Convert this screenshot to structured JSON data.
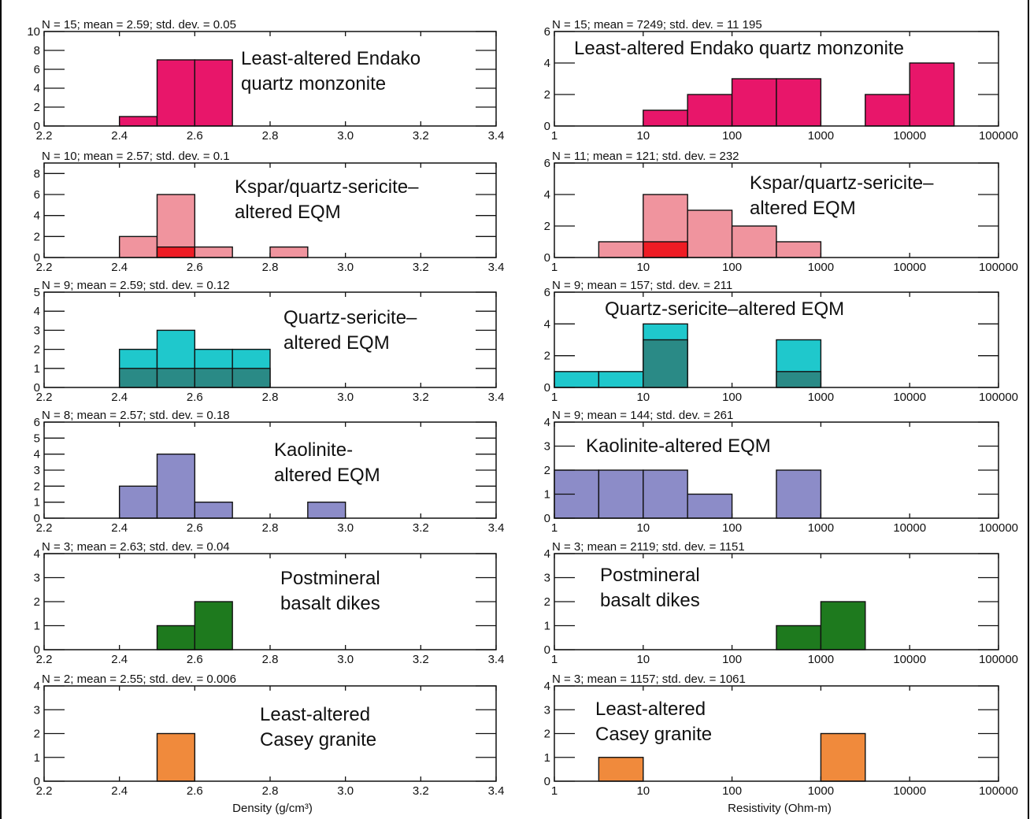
{
  "figure": {
    "density_xlabel": "Density (g/cm³)",
    "resistivity_xlabel": "Resistivity (Ohm-m)"
  },
  "chart_data": [
    {
      "type": "bar",
      "column": "density",
      "stats": "N = 15; mean = 2.59; std. dev. = 0.05",
      "title_lines": [
        "Least-altered Endako",
        "quartz monzonite"
      ],
      "xlim": [
        2.2,
        3.4
      ],
      "ylim": [
        0,
        10
      ],
      "xticks": [
        "2.2",
        "2.4",
        "2.6",
        "2.8",
        "3.0",
        "3.2",
        "3.4"
      ],
      "yticks": [
        0,
        2,
        4,
        6,
        8,
        10
      ],
      "bins": [
        [
          2.4,
          2.5
        ],
        [
          2.5,
          2.6
        ],
        [
          2.6,
          2.7
        ]
      ],
      "series": [
        {
          "values": [
            1,
            7,
            7
          ],
          "color": "#e8166a"
        }
      ]
    },
    {
      "type": "bar",
      "column": "resistivity",
      "log": true,
      "stats": "N = 15; mean = 7249; std. dev. = 11 195",
      "title_lines": [
        "Least-altered Endako quartz monzonite"
      ],
      "xlim": [
        1,
        100000
      ],
      "ylim": [
        0,
        6
      ],
      "xticks": [
        "1",
        "10",
        "100",
        "1000",
        "10000",
        "100000"
      ],
      "yticks": [
        0,
        2,
        4,
        6
      ],
      "bins": [
        [
          10,
          31.6
        ],
        [
          31.6,
          100
        ],
        [
          100,
          316
        ],
        [
          316,
          1000
        ],
        [
          3162,
          10000
        ],
        [
          10000,
          31623
        ]
      ],
      "series": [
        {
          "values": [
            1,
            2,
            3,
            3,
            2,
            4
          ],
          "color": "#e8166a"
        }
      ]
    },
    {
      "type": "bar",
      "column": "density",
      "stats": "N = 10; mean = 2.57; std. dev. = 0.1",
      "title_lines": [
        "Kspar/quartz-sericite–",
        "altered EQM"
      ],
      "xlim": [
        2.2,
        3.4
      ],
      "ylim": [
        0,
        9
      ],
      "xticks": [
        "2.2",
        "2.4",
        "2.6",
        "2.8",
        "3.0",
        "3.2",
        "3.4"
      ],
      "yticks": [
        0,
        2,
        4,
        6,
        8
      ],
      "bins": [
        [
          2.4,
          2.5
        ],
        [
          2.5,
          2.6
        ],
        [
          2.6,
          2.7
        ],
        [
          2.8,
          2.9
        ]
      ],
      "series": [
        {
          "values": [
            2,
            6,
            1,
            1
          ],
          "color": "#f0949e"
        },
        {
          "values": [
            0,
            1,
            0,
            0
          ],
          "color": "#ee1c24"
        }
      ]
    },
    {
      "type": "bar",
      "column": "resistivity",
      "log": true,
      "stats": "N = 11; mean = 121; std. dev. = 232",
      "title_lines": [
        "Kspar/quartz-sericite–",
        "altered EQM"
      ],
      "xlim": [
        1,
        100000
      ],
      "ylim": [
        0,
        6
      ],
      "xticks": [
        "1",
        "10",
        "100",
        "1000",
        "10000",
        "100000"
      ],
      "yticks": [
        0,
        2,
        4,
        6
      ],
      "bins": [
        [
          3.16,
          10
        ],
        [
          10,
          31.6
        ],
        [
          31.6,
          100
        ],
        [
          100,
          316
        ],
        [
          316,
          1000
        ]
      ],
      "series": [
        {
          "values": [
            1,
            4,
            3,
            2,
            1
          ],
          "color": "#f0949e"
        },
        {
          "values": [
            0,
            1,
            0,
            0,
            0
          ],
          "color": "#ee1c24"
        }
      ]
    },
    {
      "type": "bar",
      "column": "density",
      "stats": "N = 9; mean = 2.59; std. dev. = 0.12",
      "title_lines": [
        "Quartz-sericite–",
        "altered EQM"
      ],
      "xlim": [
        2.2,
        3.4
      ],
      "ylim": [
        0,
        5
      ],
      "xticks": [
        "2.2",
        "2.4",
        "2.6",
        "2.8",
        "3.0",
        "3.2",
        "3.4"
      ],
      "yticks": [
        0,
        1,
        2,
        3,
        4,
        5
      ],
      "bins": [
        [
          2.4,
          2.5
        ],
        [
          2.5,
          2.6
        ],
        [
          2.6,
          2.7
        ],
        [
          2.7,
          2.8
        ]
      ],
      "series": [
        {
          "values": [
            2,
            3,
            2,
            2
          ],
          "color": "#1fc8cc"
        },
        {
          "values": [
            1,
            1,
            1,
            1
          ],
          "color": "#2a8a86"
        }
      ]
    },
    {
      "type": "bar",
      "column": "resistivity",
      "log": true,
      "stats": "N = 9; mean = 157; std. dev. = 211",
      "title_lines": [
        "Quartz-sericite–altered EQM"
      ],
      "xlim": [
        1,
        100000
      ],
      "ylim": [
        0,
        6
      ],
      "xticks": [
        "1",
        "10",
        "100",
        "1000",
        "10000",
        "100000"
      ],
      "yticks": [
        0,
        2,
        4,
        6
      ],
      "bins": [
        [
          1,
          3.16
        ],
        [
          3.16,
          10
        ],
        [
          10,
          31.6
        ],
        [
          316,
          1000
        ]
      ],
      "series": [
        {
          "values": [
            1,
            1,
            4,
            3
          ],
          "color": "#1fc8cc"
        },
        {
          "values": [
            0,
            0,
            3,
            1
          ],
          "color": "#2a8a86"
        }
      ]
    },
    {
      "type": "bar",
      "column": "density",
      "stats": "N = 8; mean = 2.57; std. dev. = 0.18",
      "title_lines": [
        "Kaolinite-",
        "altered EQM"
      ],
      "xlim": [
        2.2,
        3.4
      ],
      "ylim": [
        0,
        6
      ],
      "xticks": [
        "2.2",
        "2.4",
        "2.6",
        "2.8",
        "3.0",
        "3.2",
        "3.4"
      ],
      "yticks": [
        0,
        1,
        2,
        3,
        4,
        5,
        6
      ],
      "bins": [
        [
          2.4,
          2.5
        ],
        [
          2.5,
          2.6
        ],
        [
          2.6,
          2.7
        ],
        [
          2.9,
          3.0
        ]
      ],
      "series": [
        {
          "values": [
            2,
            4,
            1,
            1
          ],
          "color": "#8c8cc8"
        }
      ]
    },
    {
      "type": "bar",
      "column": "resistivity",
      "log": true,
      "stats": "N = 9; mean = 144; std. dev. = 261",
      "title_lines": [
        "Kaolinite-altered EQM"
      ],
      "xlim": [
        1,
        100000
      ],
      "ylim": [
        0,
        4
      ],
      "xticks": [
        "1",
        "10",
        "100",
        "1000",
        "10000",
        "100000"
      ],
      "yticks": [
        0,
        1,
        2,
        3,
        4
      ],
      "bins": [
        [
          1,
          3.16
        ],
        [
          3.16,
          10
        ],
        [
          10,
          31.6
        ],
        [
          31.6,
          100
        ],
        [
          316,
          1000
        ]
      ],
      "series": [
        {
          "values": [
            2,
            2,
            2,
            1,
            2
          ],
          "color": "#8c8cc8"
        }
      ]
    },
    {
      "type": "bar",
      "column": "density",
      "stats": "N = 3; mean = 2.63; std. dev. = 0.04",
      "title_lines": [
        "Postmineral",
        "basalt dikes"
      ],
      "xlim": [
        2.2,
        3.4
      ],
      "ylim": [
        0,
        4
      ],
      "xticks": [
        "2.2",
        "2.4",
        "2.6",
        "2.8",
        "3.0",
        "3.2",
        "3.4"
      ],
      "yticks": [
        0,
        1,
        2,
        3,
        4
      ],
      "bins": [
        [
          2.5,
          2.6
        ],
        [
          2.6,
          2.7
        ]
      ],
      "series": [
        {
          "values": [
            1,
            2
          ],
          "color": "#1e7a1e"
        }
      ]
    },
    {
      "type": "bar",
      "column": "resistivity",
      "log": true,
      "stats": "N = 3; mean = 2119; std. dev. = 1151",
      "title_lines": [
        "Postmineral",
        "basalt dikes"
      ],
      "xlim": [
        1,
        100000
      ],
      "ylim": [
        0,
        4
      ],
      "xticks": [
        "1",
        "10",
        "100",
        "1000",
        "10000",
        "100000"
      ],
      "yticks": [
        0,
        1,
        2,
        3,
        4
      ],
      "bins": [
        [
          316,
          1000
        ],
        [
          1000,
          3162
        ]
      ],
      "series": [
        {
          "values": [
            1,
            2
          ],
          "color": "#1e7a1e"
        }
      ]
    },
    {
      "type": "bar",
      "column": "density",
      "stats": "N = 2; mean = 2.55; std. dev. = 0.006",
      "title_lines": [
        "Least-altered",
        "Casey granite"
      ],
      "xlim": [
        2.2,
        3.4
      ],
      "ylim": [
        0,
        4
      ],
      "xticks": [
        "2.2",
        "2.4",
        "2.6",
        "2.8",
        "3.0",
        "3.2",
        "3.4"
      ],
      "yticks": [
        0,
        1,
        2,
        3,
        4
      ],
      "bins": [
        [
          2.5,
          2.6
        ]
      ],
      "series": [
        {
          "values": [
            2
          ],
          "color": "#f08a3c"
        }
      ]
    },
    {
      "type": "bar",
      "column": "resistivity",
      "log": true,
      "stats": "N = 3; mean = 1157; std. dev. = 1061",
      "title_lines": [
        "Least-altered",
        "Casey granite"
      ],
      "xlim": [
        1,
        100000
      ],
      "ylim": [
        0,
        4
      ],
      "xticks": [
        "1",
        "10",
        "100",
        "1000",
        "10000",
        "100000"
      ],
      "yticks": [
        0,
        1,
        2,
        3,
        4
      ],
      "bins": [
        [
          3.16,
          10
        ],
        [
          1000,
          3162
        ]
      ],
      "series": [
        {
          "values": [
            1,
            2
          ],
          "color": "#f08a3c"
        }
      ]
    }
  ]
}
